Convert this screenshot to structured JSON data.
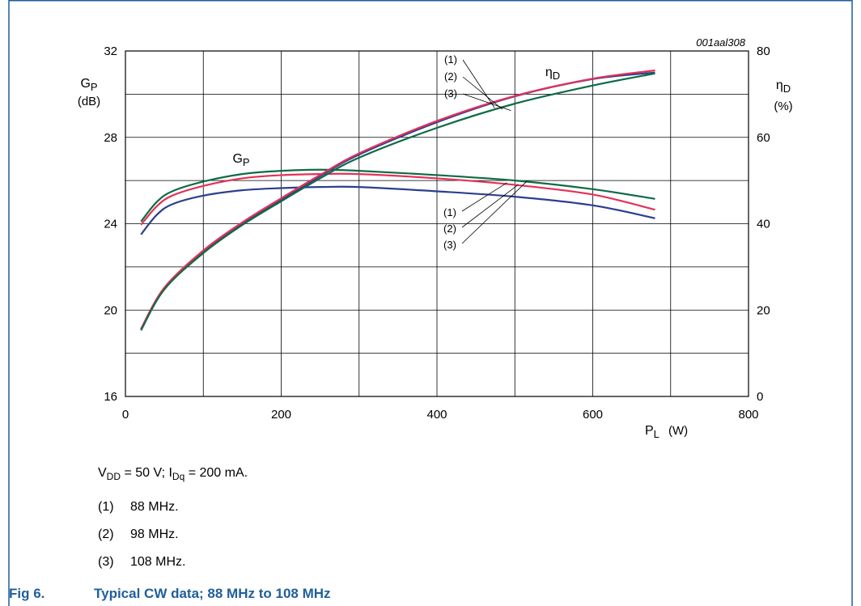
{
  "chart_data": {
    "type": "line",
    "figure_id": "001aal308",
    "x": {
      "label": "P",
      "label_sub": "L",
      "unit": "(W)",
      "range": [
        0,
        800
      ],
      "ticks": [
        0,
        200,
        400,
        600,
        800
      ]
    },
    "y_left": {
      "label": "G",
      "label_sub": "P",
      "unit": "(dB)",
      "range": [
        16,
        32
      ],
      "ticks": [
        16,
        20,
        24,
        28,
        32
      ]
    },
    "y_right": {
      "label": "η",
      "label_sub": "D",
      "unit": "(%)",
      "range": [
        0,
        80
      ],
      "ticks": [
        0,
        20,
        40,
        60,
        80
      ]
    },
    "grid": true,
    "curve_labels": {
      "gain": {
        "main": "G",
        "sub": "P"
      },
      "efficiency": {
        "main": "η",
        "sub": "D"
      }
    },
    "callouts": [
      "(1)",
      "(2)",
      "(3)"
    ],
    "series": [
      {
        "name": "(1)",
        "quantity": "gain",
        "axis": "left",
        "color": "#0e6b45",
        "x": [
          20,
          40,
          60,
          100,
          150,
          200,
          250,
          300,
          400,
          500,
          600,
          680
        ],
        "y": [
          24.1,
          25.0,
          25.5,
          25.95,
          26.3,
          26.45,
          26.5,
          26.45,
          26.25,
          26.0,
          25.6,
          25.15
        ]
      },
      {
        "name": "(2)",
        "quantity": "gain",
        "axis": "left",
        "color": "#e3315a",
        "x": [
          20,
          40,
          60,
          100,
          150,
          200,
          250,
          300,
          400,
          500,
          600,
          680
        ],
        "y": [
          23.95,
          24.8,
          25.3,
          25.75,
          26.1,
          26.25,
          26.3,
          26.3,
          26.1,
          25.8,
          25.35,
          24.65
        ]
      },
      {
        "name": "(3)",
        "quantity": "gain",
        "axis": "left",
        "color": "#2b3f8f",
        "x": [
          20,
          40,
          60,
          100,
          150,
          200,
          250,
          300,
          400,
          500,
          600,
          680
        ],
        "y": [
          23.5,
          24.4,
          24.9,
          25.3,
          25.55,
          25.65,
          25.7,
          25.7,
          25.5,
          25.25,
          24.85,
          24.25
        ]
      },
      {
        "name": "(1)",
        "quantity": "efficiency",
        "axis": "right",
        "color": "#2b3f8f",
        "x": [
          20,
          50,
          100,
          150,
          200,
          250,
          300,
          400,
          500,
          600,
          680
        ],
        "y": [
          15.5,
          25.0,
          33.5,
          40.0,
          45.5,
          51.0,
          56.0,
          63.5,
          69.5,
          73.5,
          75.0
        ]
      },
      {
        "name": "(2)",
        "quantity": "efficiency",
        "axis": "right",
        "color": "#e3315a",
        "x": [
          20,
          50,
          100,
          150,
          200,
          250,
          300,
          400,
          500,
          600,
          680
        ],
        "y": [
          15.7,
          25.2,
          33.8,
          40.3,
          45.9,
          51.3,
          56.3,
          63.8,
          69.6,
          73.6,
          75.5
        ]
      },
      {
        "name": "(3)",
        "quantity": "efficiency",
        "axis": "right",
        "color": "#0e6b45",
        "x": [
          20,
          50,
          100,
          150,
          200,
          250,
          300,
          400,
          500,
          600,
          680
        ],
        "y": [
          15.3,
          24.8,
          33.2,
          39.7,
          45.2,
          50.5,
          55.3,
          62.2,
          67.8,
          72.0,
          74.8
        ]
      }
    ]
  },
  "conditions": {
    "vdd_main": "V",
    "vdd_sub": "DD",
    "vdd_value": " = 50 V; I",
    "idq_sub": "Dq",
    "idq_value": " = 200 mA."
  },
  "notes": [
    {
      "num": "(1)",
      "text": "88 MHz."
    },
    {
      "num": "(2)",
      "text": "98 MHz."
    },
    {
      "num": "(3)",
      "text": "108 MHz."
    }
  ],
  "figure": {
    "label": "Fig 6.",
    "caption": "Typical CW data; 88 MHz to 108 MHz"
  },
  "colors": {
    "frame": "#1f5f9a",
    "caption": "#1f5f9a",
    "grid": "#000000"
  }
}
